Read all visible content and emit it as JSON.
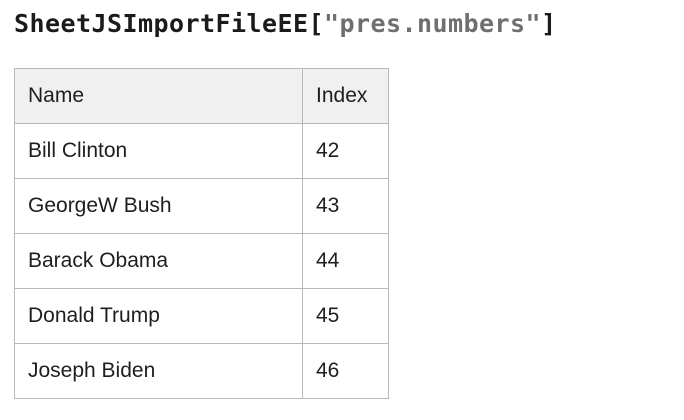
{
  "title": {
    "prefix": "SheetJSImportFileEE[",
    "filename": "\"pres.numbers\"",
    "suffix": "]"
  },
  "colors": {
    "title_text": "#1b1b1b",
    "title_filename_text": "#6f6f6f",
    "table_border": "#b9b9b9",
    "header_background": "#f0f0f0",
    "cell_text": "#1c1e21"
  },
  "table": {
    "headers": [
      "Name",
      "Index"
    ],
    "rows": [
      {
        "name": "Bill Clinton",
        "index": "42"
      },
      {
        "name": "GeorgeW Bush",
        "index": "43"
      },
      {
        "name": "Barack Obama",
        "index": "44"
      },
      {
        "name": "Donald Trump",
        "index": "45"
      },
      {
        "name": "Joseph Biden",
        "index": "46"
      }
    ]
  }
}
